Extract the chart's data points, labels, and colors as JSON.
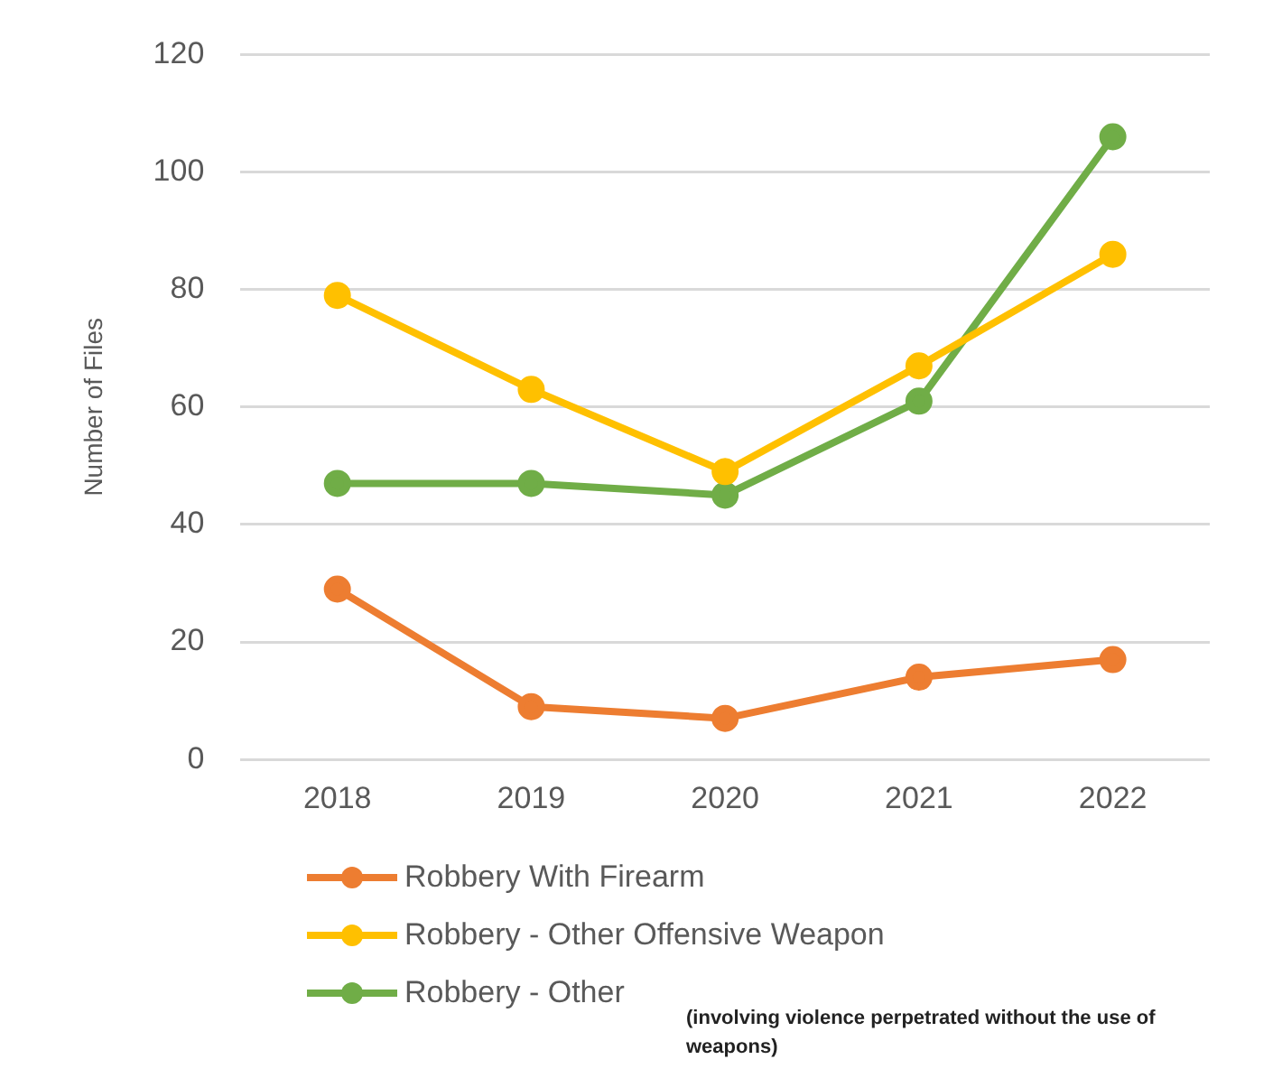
{
  "chart_data": {
    "type": "line",
    "ylabel": "Number of Files",
    "categories": [
      "2018",
      "2019",
      "2020",
      "2021",
      "2022"
    ],
    "series": [
      {
        "name": "Robbery With Firearm",
        "color": "#ed7d31",
        "values": [
          29,
          9,
          7,
          14,
          17
        ]
      },
      {
        "name": "Robbery - Other Offensive Weapon",
        "color": "#ffc000",
        "values": [
          79,
          63,
          49,
          67,
          86
        ]
      },
      {
        "name": "Robbery - Other",
        "color": "#70ad47",
        "values": [
          47,
          47,
          45,
          61,
          106
        ]
      }
    ],
    "ylim": [
      0,
      120
    ],
    "yticks": [
      0,
      20,
      40,
      60,
      80,
      100,
      120
    ],
    "grid": "y",
    "legend": "bottom",
    "marker": "circle",
    "line_style": "solid",
    "annotations": [
      "(involving violence perpetrated without the use of weapons)"
    ]
  }
}
